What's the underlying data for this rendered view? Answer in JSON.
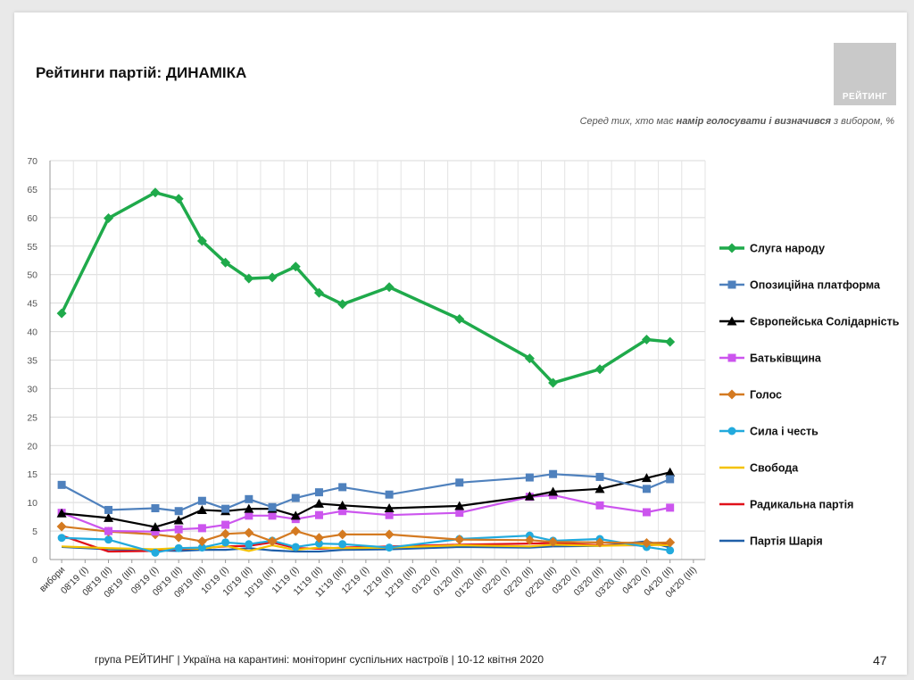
{
  "title": "Рейтинги партій: ДИНАМІКА",
  "logo_text": "РЕЙТИНГ",
  "subtitle_prefix": "Серед тих, хто має ",
  "subtitle_bold": "намір голосувати і визначився",
  "subtitle_suffix": " з вибором, %",
  "footer": "група РЕЙТИНГ | Україна на карантині: моніторинг суспільних настроїв  | 10-12 квітня  2020",
  "page_number": "47",
  "chart_data": {
    "type": "line",
    "ylim": [
      0,
      70
    ],
    "yticks": [
      0,
      5,
      10,
      15,
      20,
      25,
      30,
      35,
      40,
      45,
      50,
      55,
      60,
      65,
      70
    ],
    "grid": true,
    "legend_position": "right",
    "categories": [
      "вибори",
      "08'19 (І)",
      "08'19 (ІІ)",
      "08'19 (ІІІ)",
      "09'19 (І)",
      "09'19 (ІІ)",
      "09'19 (ІІІ)",
      "10'19 (І)",
      "10'19 (ІІ)",
      "10'19 (ІІІ)",
      "11'19 (І)",
      "11'19 (ІІ)",
      "11'19 (ІІІ)",
      "12'19 (І)",
      "12'19 (ІІ)",
      "12'19 (ІІІ)",
      "01'20 (І)",
      "01'20 (ІІ)",
      "01'20 (ІІІ)",
      "02'20 (І)",
      "02'20 (ІІ)",
      "02'20 (ІІІ)",
      "03'20 (І)",
      "03'20 (ІІ)",
      "03'20 (ІІІ)",
      "04'20 (І)",
      "04'20 (ІІ)"
    ],
    "x_label_categories": [
      "вибори",
      "08'19 (І)",
      "08'19 (ІІ)",
      "08'19 (ІІІ)",
      "09'19 (І)",
      "09'19 (ІІ)",
      "09'19 (ІІІ)",
      "10'19 (І)",
      "10'19 (ІІ)",
      "10'19 (ІІІ)",
      "11'19 (І)",
      "11'19 (ІІ)",
      "11'19 (ІІІ)",
      "12'19 (І)",
      "12'19 (ІІ)",
      "12'19 (ІІІ)",
      "01'20 (І)",
      "01'20 (ІІ)",
      "01'20 (ІІІ)",
      "02'20 (І)",
      "02'20 (ІІ)",
      "02'20 (ІІІ)",
      "03'20 (І)",
      "03'20 (ІІ)",
      "03'20 (ІІІ)",
      "04'20 (І)",
      "04'20 (ІІ)",
      "04'20 (ІІІ)"
    ],
    "series": [
      {
        "name": "Слуга народу",
        "color": "#1faa4b",
        "marker": "diamond",
        "points": [
          [
            0,
            43.2
          ],
          [
            2,
            59.9
          ],
          [
            4,
            64.4
          ],
          [
            5,
            63.3
          ],
          [
            6,
            55.9
          ],
          [
            7,
            52.1
          ],
          [
            8,
            49.3
          ],
          [
            9,
            49.5
          ],
          [
            10,
            51.4
          ],
          [
            11,
            46.8
          ],
          [
            12,
            44.8
          ],
          [
            14,
            47.8
          ],
          [
            17,
            42.2
          ],
          [
            20,
            35.3
          ],
          [
            21,
            31.0
          ],
          [
            23,
            33.4
          ],
          [
            25,
            38.6
          ],
          [
            26,
            38.2
          ]
        ]
      },
      {
        "name": "Опозиційна платформа",
        "color": "#4f81bd",
        "marker": "square",
        "points": [
          [
            0,
            13.1
          ],
          [
            2,
            8.7
          ],
          [
            4,
            9.0
          ],
          [
            5,
            8.5
          ],
          [
            6,
            10.3
          ],
          [
            7,
            8.9
          ],
          [
            8,
            10.6
          ],
          [
            9,
            9.2
          ],
          [
            10,
            10.8
          ],
          [
            11,
            11.8
          ],
          [
            12,
            12.7
          ],
          [
            14,
            11.4
          ],
          [
            17,
            13.5
          ],
          [
            20,
            14.4
          ],
          [
            21,
            15.0
          ],
          [
            23,
            14.5
          ],
          [
            25,
            12.4
          ],
          [
            26,
            14.1
          ]
        ]
      },
      {
        "name": "Європейська Солідарність",
        "color": "#000000",
        "marker": "triangle",
        "points": [
          [
            0,
            8.1
          ],
          [
            2,
            7.3
          ],
          [
            4,
            5.7
          ],
          [
            5,
            6.9
          ],
          [
            6,
            8.7
          ],
          [
            7,
            8.5
          ],
          [
            8,
            8.9
          ],
          [
            9,
            8.9
          ],
          [
            10,
            7.7
          ],
          [
            11,
            9.8
          ],
          [
            12,
            9.5
          ],
          [
            14,
            9.0
          ],
          [
            17,
            9.4
          ],
          [
            20,
            11.1
          ],
          [
            21,
            11.9
          ],
          [
            23,
            12.4
          ],
          [
            25,
            14.3
          ],
          [
            26,
            15.3
          ]
        ]
      },
      {
        "name": "Батьківщина",
        "color": "#cc55ee",
        "marker": "square",
        "points": [
          [
            0,
            8.2
          ],
          [
            2,
            5.0
          ],
          [
            4,
            4.9
          ],
          [
            5,
            5.3
          ],
          [
            6,
            5.5
          ],
          [
            7,
            6.1
          ],
          [
            8,
            7.7
          ],
          [
            9,
            7.7
          ],
          [
            10,
            7.1
          ],
          [
            11,
            7.8
          ],
          [
            12,
            8.5
          ],
          [
            14,
            7.8
          ],
          [
            17,
            8.2
          ],
          [
            20,
            11.0
          ],
          [
            21,
            11.3
          ],
          [
            23,
            9.5
          ],
          [
            25,
            8.3
          ],
          [
            26,
            9.1
          ]
        ]
      },
      {
        "name": "Голос",
        "color": "#d47a21",
        "marker": "diamond",
        "points": [
          [
            0,
            5.8
          ],
          [
            2,
            4.9
          ],
          [
            4,
            4.4
          ],
          [
            5,
            3.9
          ],
          [
            6,
            3.2
          ],
          [
            7,
            4.5
          ],
          [
            8,
            4.7
          ],
          [
            9,
            3.2
          ],
          [
            10,
            5.0
          ],
          [
            11,
            3.8
          ],
          [
            12,
            4.4
          ],
          [
            14,
            4.4
          ],
          [
            17,
            3.5
          ],
          [
            20,
            3.4
          ],
          [
            21,
            3.1
          ],
          [
            23,
            3.0
          ],
          [
            25,
            2.9
          ],
          [
            26,
            3.0
          ]
        ]
      },
      {
        "name": "Сила і честь",
        "color": "#22aadd",
        "marker": "circle",
        "points": [
          [
            0,
            3.8
          ],
          [
            2,
            3.5
          ],
          [
            4,
            1.2
          ],
          [
            5,
            2.0
          ],
          [
            6,
            2.1
          ],
          [
            7,
            3.0
          ],
          [
            8,
            2.7
          ],
          [
            9,
            3.3
          ],
          [
            10,
            2.2
          ],
          [
            11,
            2.8
          ],
          [
            12,
            2.7
          ],
          [
            14,
            2.1
          ],
          [
            17,
            3.6
          ],
          [
            20,
            4.2
          ],
          [
            21,
            3.3
          ],
          [
            23,
            3.6
          ],
          [
            25,
            2.2
          ],
          [
            26,
            1.6
          ]
        ]
      },
      {
        "name": "Свобода",
        "color": "#f4c200",
        "marker": "none",
        "points": [
          [
            0,
            2.3
          ],
          [
            2,
            2.0
          ],
          [
            4,
            1.8
          ],
          [
            5,
            2.0
          ],
          [
            6,
            1.9
          ],
          [
            7,
            2.4
          ],
          [
            8,
            1.5
          ],
          [
            9,
            2.5
          ],
          [
            10,
            1.7
          ],
          [
            11,
            2.1
          ],
          [
            12,
            2.0
          ],
          [
            14,
            2.1
          ],
          [
            17,
            2.5
          ],
          [
            20,
            2.3
          ],
          [
            21,
            2.6
          ],
          [
            23,
            2.4
          ],
          [
            25,
            2.6
          ],
          [
            26,
            2.5
          ]
        ]
      },
      {
        "name": "Радикальна партія",
        "color": "#e0101a",
        "marker": "none",
        "points": [
          [
            0,
            4.2
          ],
          [
            2,
            1.4
          ],
          [
            4,
            1.5
          ],
          [
            5,
            1.8
          ],
          [
            6,
            2.0
          ],
          [
            7,
            2.3
          ],
          [
            8,
            2.4
          ],
          [
            9,
            3.0
          ],
          [
            10,
            2.0
          ],
          [
            11,
            1.9
          ],
          [
            12,
            2.1
          ],
          [
            14,
            2.3
          ],
          [
            17,
            2.6
          ],
          [
            20,
            2.8
          ],
          [
            21,
            2.9
          ],
          [
            23,
            2.5
          ],
          [
            25,
            2.5
          ],
          [
            26,
            2.7
          ]
        ]
      },
      {
        "name": "Партія Шарія",
        "color": "#1f5fa8",
        "marker": "none",
        "points": [
          [
            0,
            2.2
          ],
          [
            2,
            1.8
          ],
          [
            4,
            1.6
          ],
          [
            5,
            1.5
          ],
          [
            6,
            1.7
          ],
          [
            7,
            1.7
          ],
          [
            8,
            2.0
          ],
          [
            9,
            1.6
          ],
          [
            10,
            1.4
          ],
          [
            11,
            1.4
          ],
          [
            12,
            1.7
          ],
          [
            14,
            1.8
          ],
          [
            17,
            2.2
          ],
          [
            20,
            2.1
          ],
          [
            21,
            2.3
          ],
          [
            23,
            2.4
          ],
          [
            25,
            3.2
          ],
          [
            26,
            2.1
          ]
        ]
      }
    ]
  }
}
